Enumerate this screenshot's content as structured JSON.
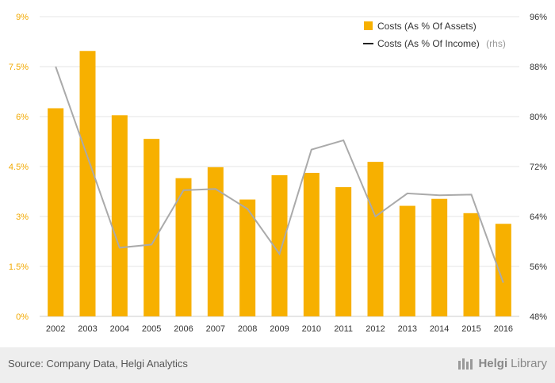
{
  "chart_data": {
    "type": "bar",
    "categories": [
      "2002",
      "2003",
      "2004",
      "2005",
      "2006",
      "2007",
      "2008",
      "2009",
      "2010",
      "2011",
      "2012",
      "2013",
      "2014",
      "2015",
      "2016"
    ],
    "series": [
      {
        "name": "Costs (As % Of Assets)",
        "type": "bar",
        "axis": "left",
        "color": "#f7b000",
        "values": [
          6.25,
          7.97,
          6.04,
          5.33,
          4.15,
          4.48,
          3.51,
          4.24,
          4.31,
          3.88,
          4.64,
          3.32,
          3.53,
          3.1,
          2.78
        ]
      },
      {
        "name": "Costs (As % Of Income)",
        "type": "line",
        "axis": "right",
        "color": "#aaaaaa",
        "values": [
          88.0,
          73.5,
          59.0,
          59.5,
          68.2,
          68.4,
          65.2,
          58.0,
          74.7,
          76.2,
          64.0,
          67.7,
          67.4,
          67.5,
          53.4
        ]
      }
    ],
    "y_left": {
      "ylim": [
        0,
        9
      ],
      "ticks": [
        "0%",
        "1.5%",
        "3%",
        "4.5%",
        "6%",
        "7.5%",
        "9%"
      ]
    },
    "y_right": {
      "ylim": [
        48,
        96
      ],
      "ticks": [
        "48%",
        "56%",
        "64%",
        "72%",
        "80%",
        "88%",
        "96%"
      ]
    },
    "legend": {
      "placement": "top-right",
      "bar_label": "Costs (As % Of Assets)",
      "line_label": "Costs (As % Of Income)",
      "rhs_suffix": "(rhs)"
    },
    "grid": true
  },
  "footer": {
    "source": "Source: Company Data, Helgi Analytics",
    "brand_part1": "Helgi",
    "brand_part2": "Library"
  }
}
